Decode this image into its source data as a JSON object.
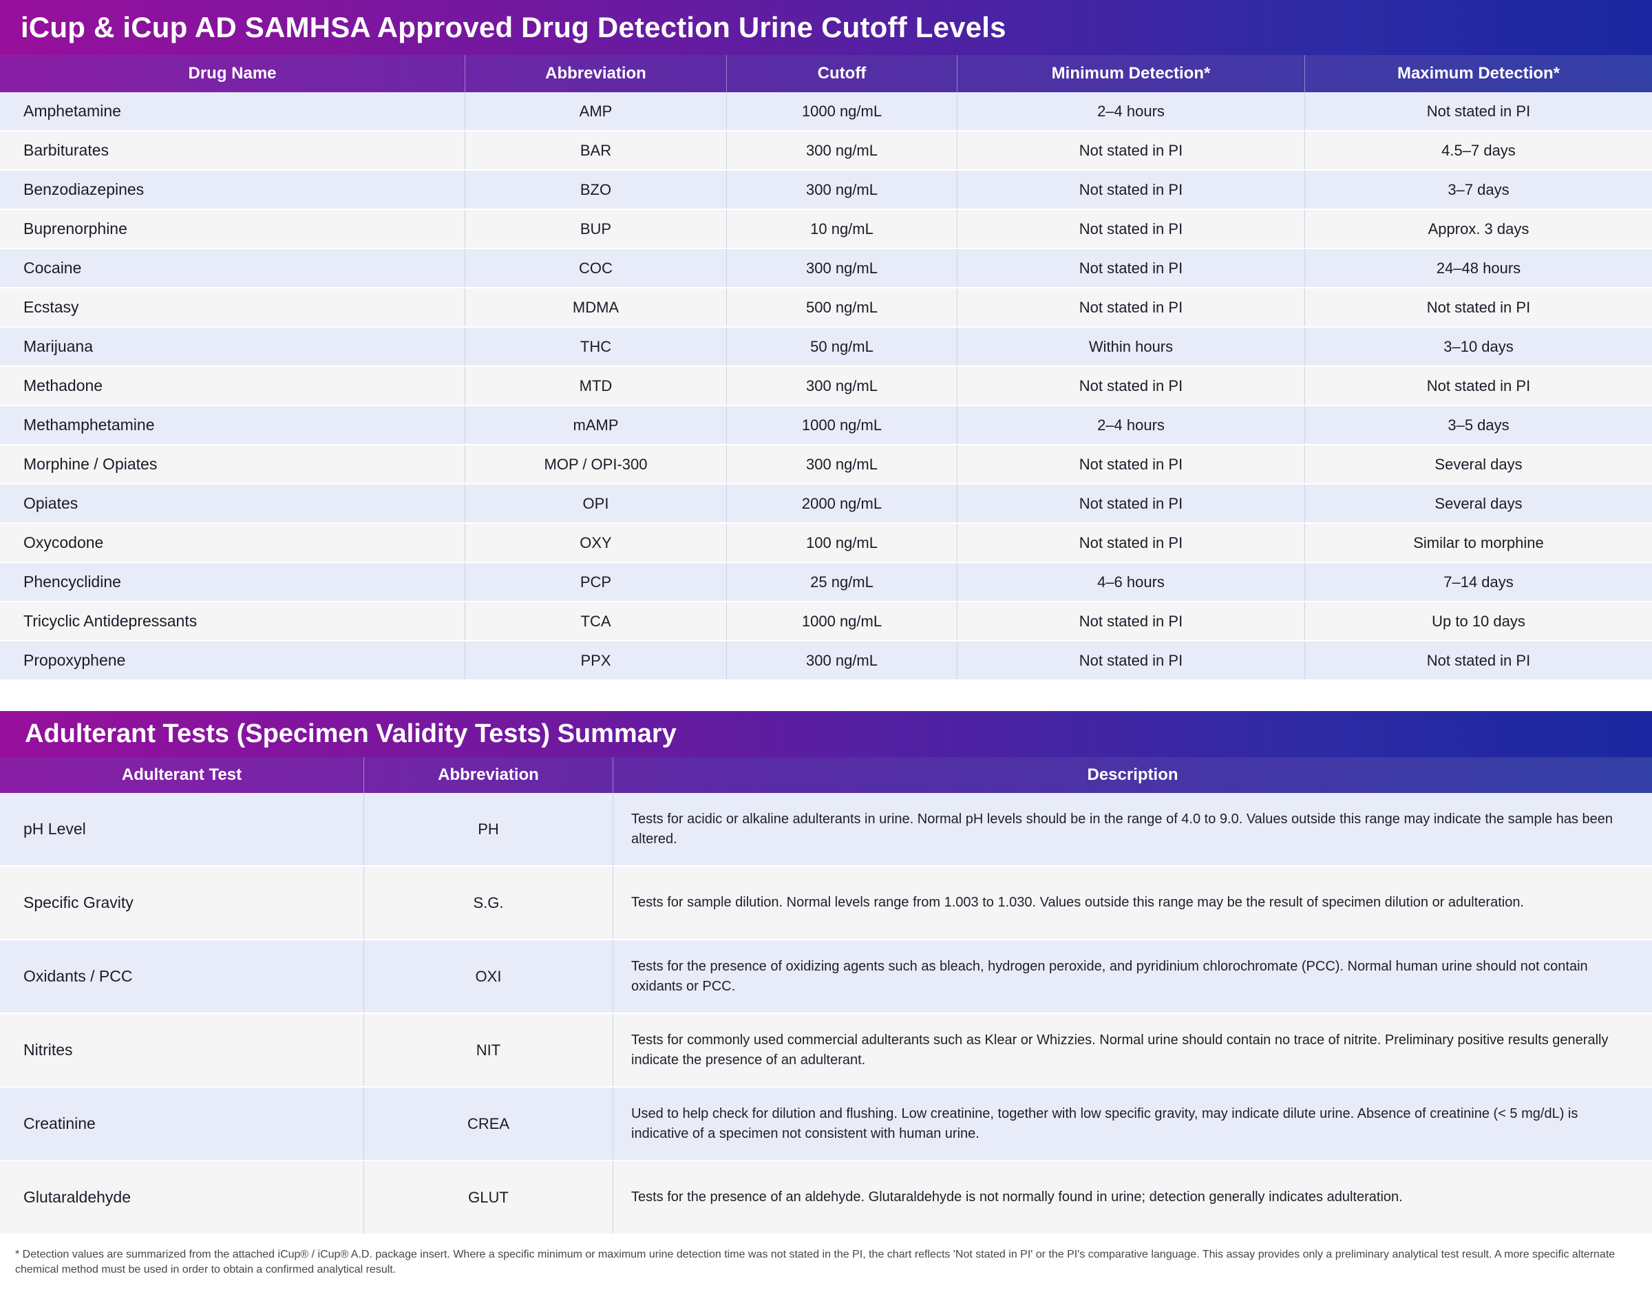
{
  "page": {
    "title": "iCup & iCup AD SAMHSA Approved Drug Detection Urine Cutoff Levels",
    "footnote": "* Detection values are summarized from the attached iCup® / iCup® A.D. package insert. Where a specific minimum or maximum urine detection time was not stated in the PI, the chart reflects 'Not stated in PI' or the PI's comparative language. This assay provides only a preliminary analytical test result. A more specific alternate chemical method must be used in order to obtain a confirmed analytical result."
  },
  "colors": {
    "banner_gradient_start": "#97109c",
    "banner_gradient_end": "#1a27a0",
    "header_gradient_start": "#8a1fa6",
    "header_gradient_end": "#3340a6",
    "row_odd": "#e8ecf8",
    "row_even": "#f5f5f6"
  },
  "drug_table": {
    "headers": [
      "Drug Name",
      "Abbreviation",
      "Cutoff",
      "Minimum Detection*",
      "Maximum Detection*"
    ],
    "rows": [
      {
        "drug": "Amphetamine",
        "abbr": "AMP",
        "cutoff": "1000 ng/mL",
        "min": "2–4 hours",
        "max": "Not stated in PI"
      },
      {
        "drug": "Barbiturates",
        "abbr": "BAR",
        "cutoff": "300 ng/mL",
        "min": "Not stated in PI",
        "max": "4.5–7 days"
      },
      {
        "drug": "Benzodiazepines",
        "abbr": "BZO",
        "cutoff": "300 ng/mL",
        "min": "Not stated in PI",
        "max": "3–7 days"
      },
      {
        "drug": "Buprenorphine",
        "abbr": "BUP",
        "cutoff": "10 ng/mL",
        "min": "Not stated in PI",
        "max": "Approx. 3 days"
      },
      {
        "drug": "Cocaine",
        "abbr": "COC",
        "cutoff": "300 ng/mL",
        "min": "Not stated in PI",
        "max": "24–48 hours"
      },
      {
        "drug": "Ecstasy",
        "abbr": "MDMA",
        "cutoff": "500 ng/mL",
        "min": "Not stated in PI",
        "max": "Not stated in PI"
      },
      {
        "drug": "Marijuana",
        "abbr": "THC",
        "cutoff": "50 ng/mL",
        "min": "Within hours",
        "max": "3–10 days"
      },
      {
        "drug": "Methadone",
        "abbr": "MTD",
        "cutoff": "300 ng/mL",
        "min": "Not stated in PI",
        "max": "Not stated in PI"
      },
      {
        "drug": "Methamphetamine",
        "abbr": "mAMP",
        "cutoff": "1000 ng/mL",
        "min": "2–4 hours",
        "max": "3–5 days"
      },
      {
        "drug": "Morphine / Opiates",
        "abbr": "MOP / OPI-300",
        "cutoff": "300 ng/mL",
        "min": "Not stated in PI",
        "max": "Several days"
      },
      {
        "drug": "Opiates",
        "abbr": "OPI",
        "cutoff": "2000 ng/mL",
        "min": "Not stated in PI",
        "max": "Several days"
      },
      {
        "drug": "Oxycodone",
        "abbr": "OXY",
        "cutoff": "100 ng/mL",
        "min": "Not stated in PI",
        "max": "Similar to morphine"
      },
      {
        "drug": "Phencyclidine",
        "abbr": "PCP",
        "cutoff": "25 ng/mL",
        "min": "4–6 hours",
        "max": "7–14 days"
      },
      {
        "drug": "Tricyclic Antidepressants",
        "abbr": "TCA",
        "cutoff": "1000 ng/mL",
        "min": "Not stated in PI",
        "max": "Up to 10 days"
      },
      {
        "drug": "Propoxyphene",
        "abbr": "PPX",
        "cutoff": "300 ng/mL",
        "min": "Not stated in PI",
        "max": "Not stated in PI"
      }
    ]
  },
  "adulterant_section": {
    "title": "Adulterant Tests (Specimen Validity Tests) Summary",
    "headers": [
      "Adulterant Test",
      "Abbreviation",
      "Description"
    ],
    "rows": [
      {
        "test": "pH Level",
        "abbr": "PH",
        "desc": "Tests for acidic or alkaline adulterants in urine. Normal pH levels should be in the range of 4.0 to 9.0. Values outside this range may indicate the sample has been altered."
      },
      {
        "test": "Specific Gravity",
        "abbr": "S.G.",
        "desc": "Tests for sample dilution. Normal levels range from 1.003 to 1.030. Values outside this range may be the result of specimen dilution or adulteration."
      },
      {
        "test": "Oxidants / PCC",
        "abbr": "OXI",
        "desc": "Tests for the presence of oxidizing agents such as bleach, hydrogen peroxide, and pyridinium chlorochromate (PCC). Normal human urine should not contain oxidants or PCC."
      },
      {
        "test": "Nitrites",
        "abbr": "NIT",
        "desc": "Tests for commonly used commercial adulterants such as Klear or Whizzies. Normal urine should contain no trace of nitrite. Preliminary positive results generally indicate the presence of an adulterant."
      },
      {
        "test": "Creatinine",
        "abbr": "CREA",
        "desc": "Used to help check for dilution and flushing. Low creatinine, together with low specific gravity, may indicate dilute urine. Absence of creatinine (< 5 mg/dL) is indicative of a specimen not consistent with human urine."
      },
      {
        "test": "Glutaraldehyde",
        "abbr": "GLUT",
        "desc": "Tests for the presence of an aldehyde. Glutaraldehyde is not normally found in urine; detection generally indicates adulteration."
      }
    ]
  }
}
